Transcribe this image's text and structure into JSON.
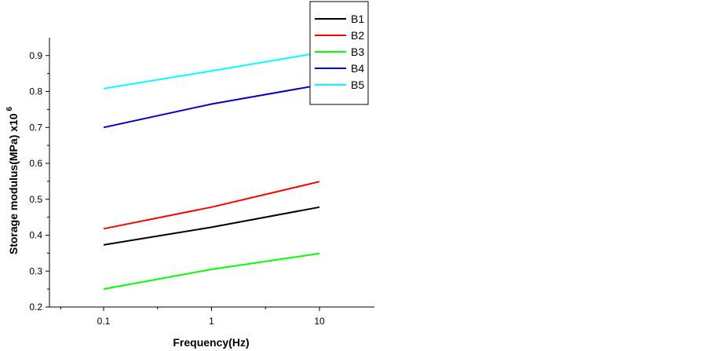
{
  "chart_data": {
    "type": "line",
    "xlabel": "Frequency(Hz)",
    "ylabel": "Storage modulus(MPa) x10",
    "ylabel_superscript": "6",
    "x_scale": "log",
    "xlim": [
      0.04,
      40
    ],
    "ylim": [
      0.2,
      0.95
    ],
    "x_ticks": [
      0.1,
      1,
      10
    ],
    "x_tick_labels": [
      "0.1",
      "1",
      "10"
    ],
    "y_ticks": [
      0.2,
      0.3,
      0.4,
      0.5,
      0.6,
      0.7,
      0.8,
      0.9
    ],
    "y_tick_labels": [
      "0.2",
      "0.3",
      "0.4",
      "0.5",
      "0.6",
      "0.7",
      "0.8",
      "0.9"
    ],
    "grid": false,
    "legend_position": "top-right",
    "x": [
      0.1,
      1,
      10
    ],
    "series": [
      {
        "name": "B1",
        "color": "#000000",
        "values": [
          0.373,
          0.422,
          0.478
        ]
      },
      {
        "name": "B2",
        "color": "#ff0000",
        "values": [
          0.418,
          0.478,
          0.549
        ]
      },
      {
        "name": "B3",
        "color": "#00ff00",
        "values": [
          0.25,
          0.305,
          0.349
        ]
      },
      {
        "name": "B4",
        "color": "#0000cc",
        "values": [
          0.7,
          0.765,
          0.818
        ]
      },
      {
        "name": "B5",
        "color": "#00ffff",
        "values": [
          0.808,
          0.857,
          0.908
        ]
      }
    ]
  }
}
